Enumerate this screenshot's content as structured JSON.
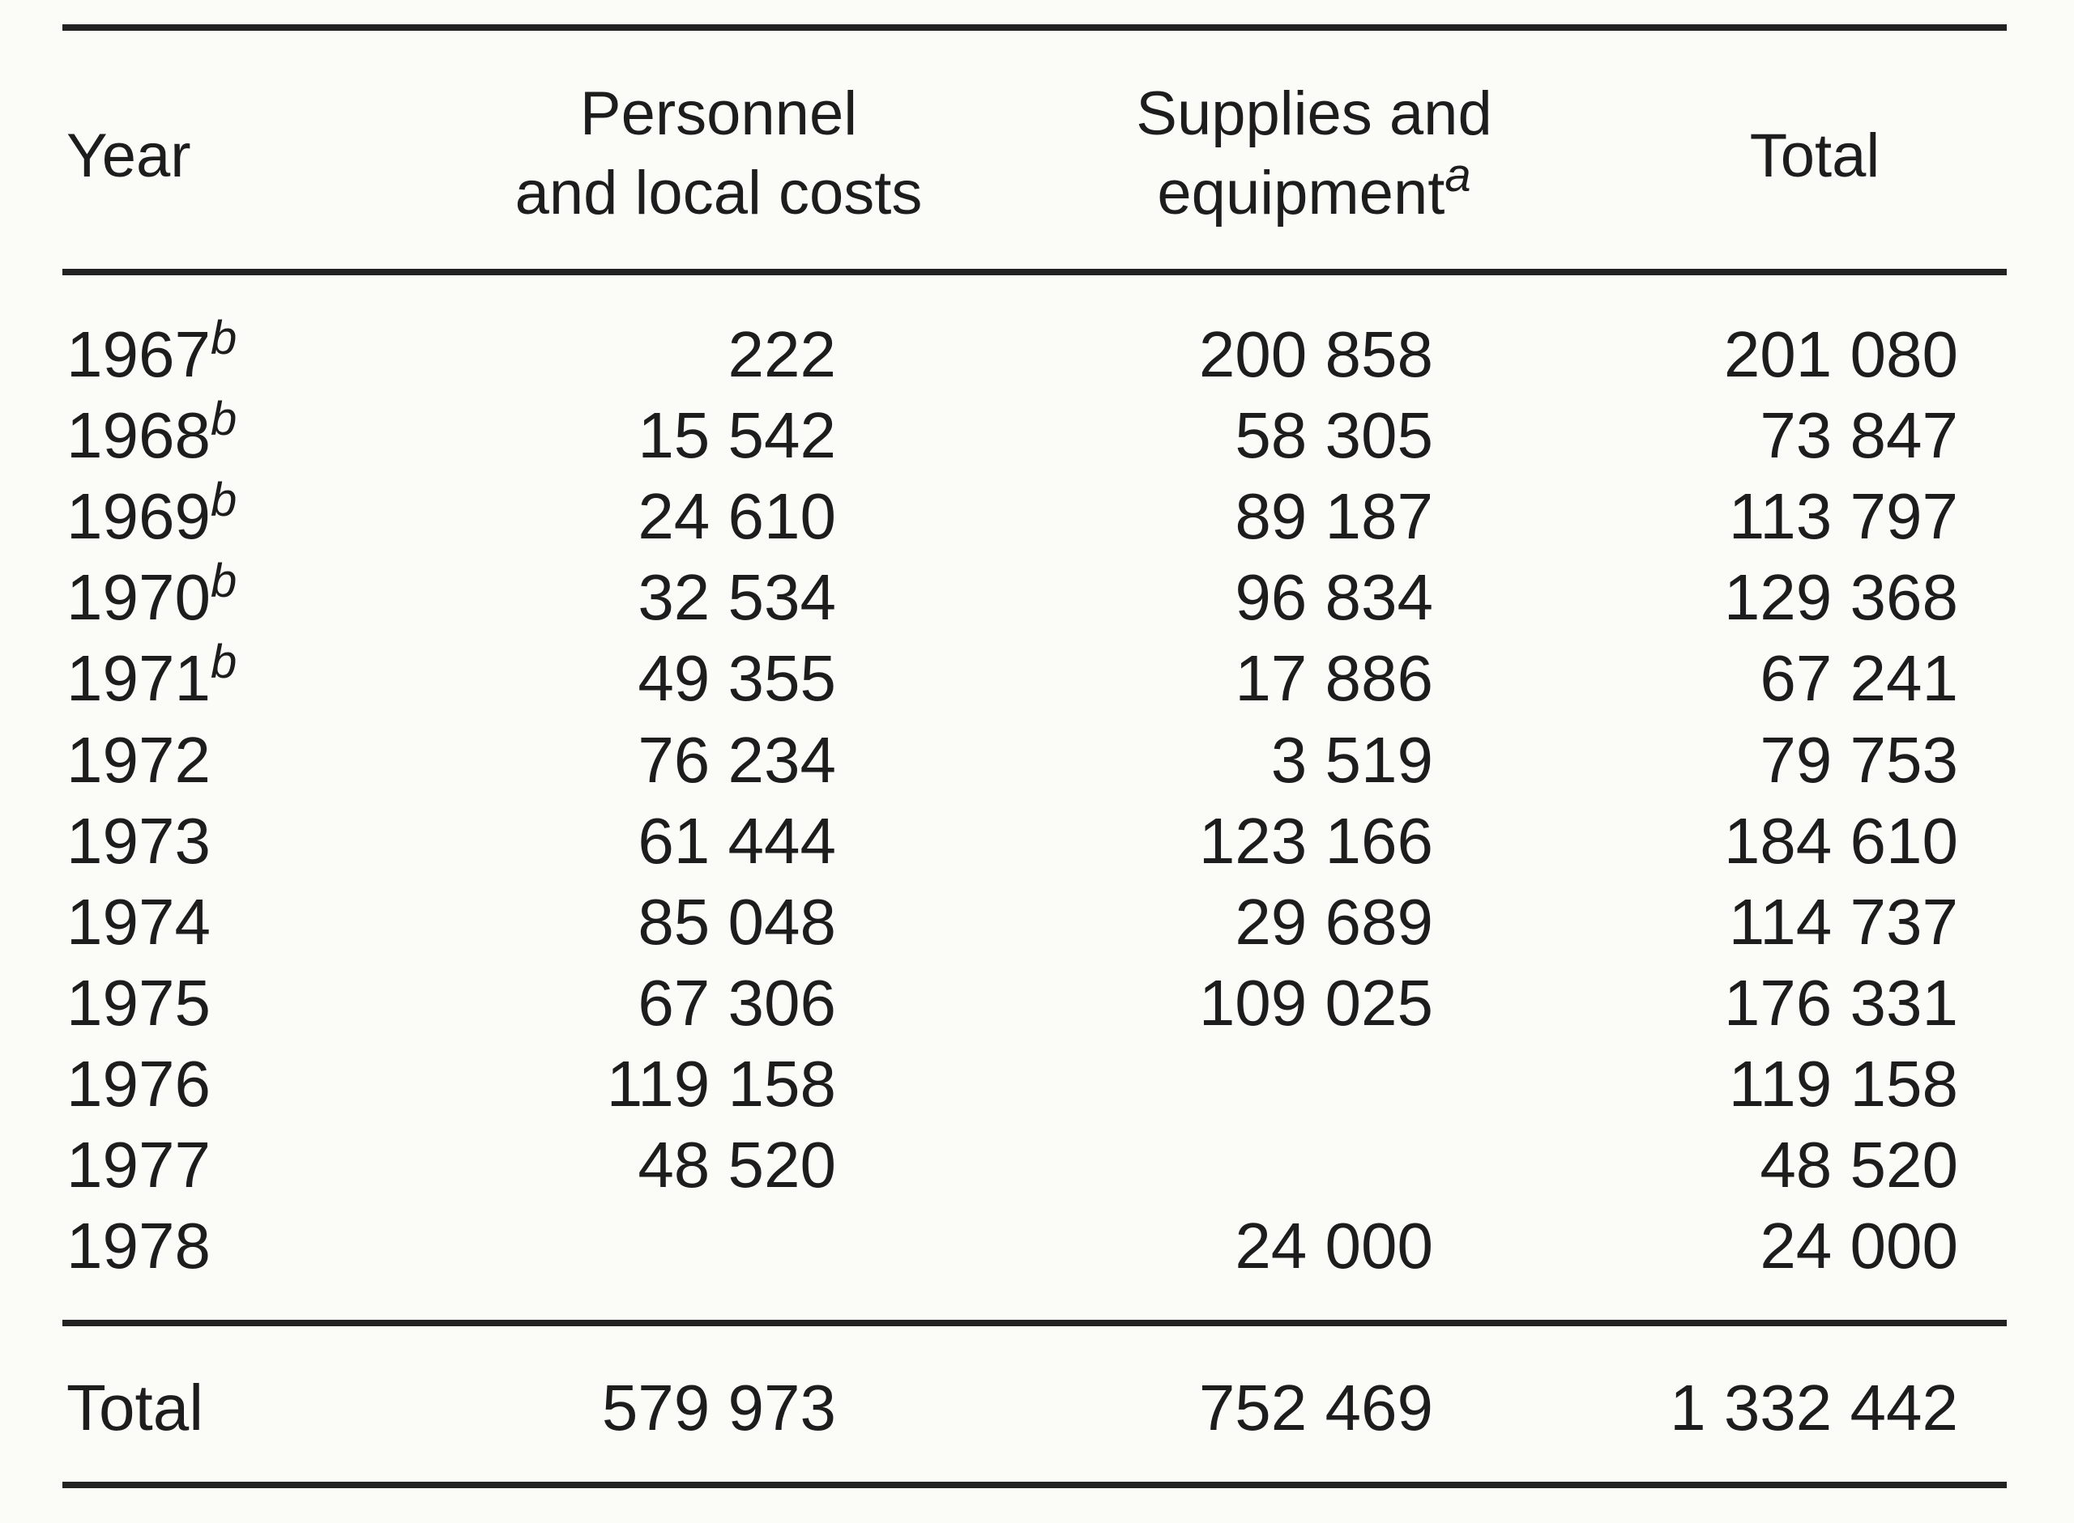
{
  "table": {
    "headers": {
      "year": "Year",
      "personnel_line1": "Personnel",
      "personnel_line2": "and local costs",
      "supplies_line1": "Supplies and",
      "supplies_line2": "equipment",
      "supplies_note": "a",
      "total": "Total"
    },
    "rows": [
      {
        "year": "1967",
        "note": "b",
        "personnel": "222",
        "supplies": "200 858",
        "total": "201 080"
      },
      {
        "year": "1968",
        "note": "b",
        "personnel": "15 542",
        "supplies": "58 305",
        "total": "73 847"
      },
      {
        "year": "1969",
        "note": "b",
        "personnel": "24 610",
        "supplies": "89 187",
        "total": "113 797"
      },
      {
        "year": "1970",
        "note": "b",
        "personnel": "32 534",
        "supplies": "96 834",
        "total": "129 368"
      },
      {
        "year": "1971",
        "note": "b",
        "personnel": "49 355",
        "supplies": "17 886",
        "total": "67 241"
      },
      {
        "year": "1972",
        "note": "",
        "personnel": "76 234",
        "supplies": "3 519",
        "total": "79 753"
      },
      {
        "year": "1973",
        "note": "",
        "personnel": "61 444",
        "supplies": "123 166",
        "total": "184 610"
      },
      {
        "year": "1974",
        "note": "",
        "personnel": "85 048",
        "supplies": "29 689",
        "total": "114 737"
      },
      {
        "year": "1975",
        "note": "",
        "personnel": "67 306",
        "supplies": "109 025",
        "total": "176 331"
      },
      {
        "year": "1976",
        "note": "",
        "personnel": "119 158",
        "supplies": "",
        "total": "119 158"
      },
      {
        "year": "1977",
        "note": "",
        "personnel": "48 520",
        "supplies": "",
        "total": "48 520"
      },
      {
        "year": "1978",
        "note": "",
        "personnel": "",
        "supplies": "24 000",
        "total": "24 000"
      }
    ],
    "totals": {
      "label": "Total",
      "personnel": "579 973",
      "supplies": "752 469",
      "total": "1 332 442"
    }
  }
}
